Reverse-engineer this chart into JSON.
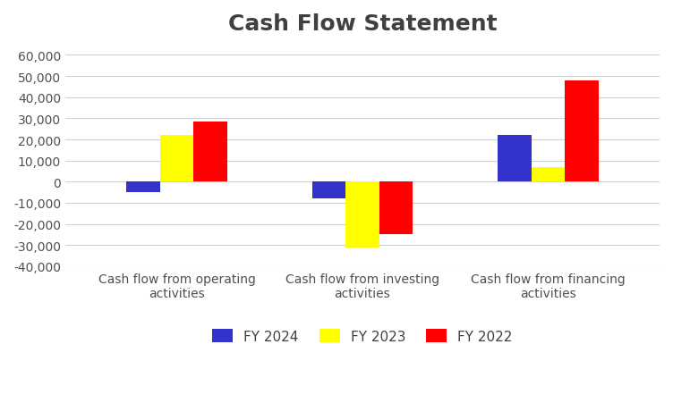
{
  "title": "Cash Flow Statement",
  "categories": [
    "Cash flow from operating\nactivities",
    "Cash flow from investing\nactivities",
    "Cash flow from financing\nactivities"
  ],
  "series": [
    {
      "label": "FY 2024",
      "color": "#3333CC",
      "values": [
        -5000,
        -8000,
        22000
      ]
    },
    {
      "label": "FY 2023",
      "color": "#FFFF00",
      "values": [
        22000,
        -31000,
        7000
      ]
    },
    {
      "label": "FY 2022",
      "color": "#FF0000",
      "values": [
        28500,
        -25000,
        48000
      ]
    }
  ],
  "ylim": [
    -40000,
    65000
  ],
  "yticks": [
    -40000,
    -30000,
    -20000,
    -10000,
    0,
    10000,
    20000,
    30000,
    40000,
    50000,
    60000
  ],
  "bar_width": 0.18,
  "background_color": "#FFFFFF",
  "grid_color": "#D0D0D0",
  "title_fontsize": 18,
  "tick_fontsize": 10,
  "legend_fontsize": 11,
  "title_color": "#404040",
  "tick_color": "#505050",
  "legend_color": "#404040"
}
